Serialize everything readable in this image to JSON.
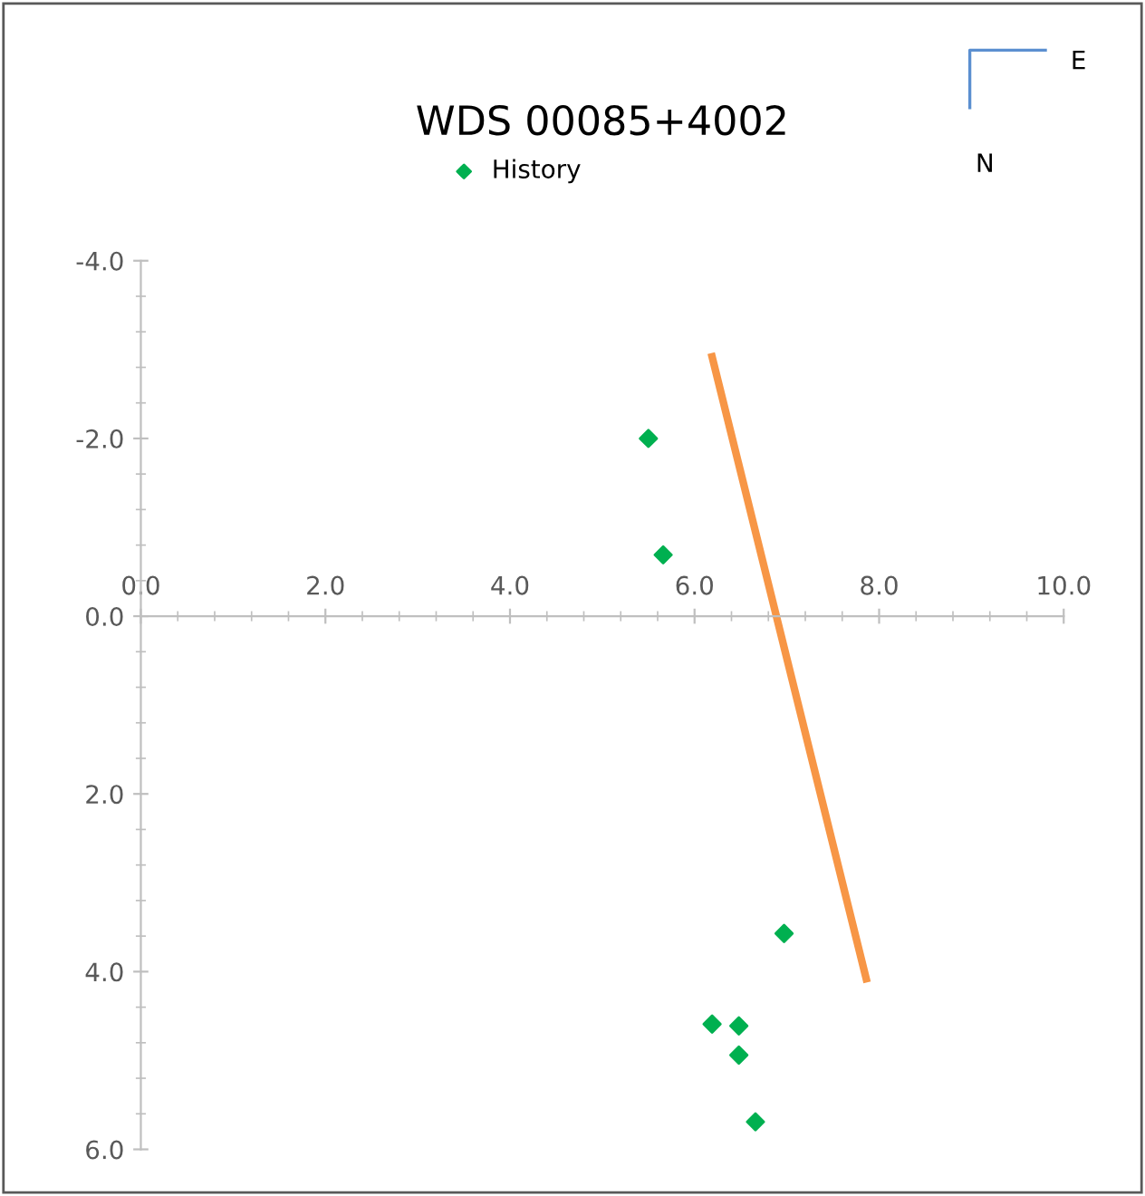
{
  "chart_data": {
    "type": "scatter",
    "title": "WDS 00085+4002",
    "annotations": [
      "E",
      "N"
    ],
    "series": [
      {
        "name": "History",
        "color": "#00b050",
        "marker": "diamond",
        "x": [
          5.5,
          5.66,
          6.97,
          6.19,
          6.48,
          6.48,
          6.66
        ],
        "values": [
          -2.0,
          -0.69,
          3.57,
          4.59,
          4.61,
          4.94,
          5.69
        ]
      },
      {
        "type": "line",
        "color": "#f79646",
        "marker": "none",
        "x": [
          6.19,
          7.86
        ],
        "values": [
          -2.92,
          4.08
        ]
      }
    ],
    "xlim": [
      0,
      10
    ],
    "ylim": [
      6,
      -4
    ],
    "xticks": [
      {
        "value": 0,
        "label": "0.0"
      },
      {
        "value": 2,
        "label": "2.0"
      },
      {
        "value": 4,
        "label": "4.0"
      },
      {
        "value": 6,
        "label": "6.0"
      },
      {
        "value": 8,
        "label": "8.0"
      },
      {
        "value": 10,
        "label": "10.0"
      }
    ],
    "yticks": [
      {
        "value": -4,
        "label": "-4.0"
      },
      {
        "value": -2,
        "label": "-2.0"
      },
      {
        "value": 0,
        "label": "0.0"
      },
      {
        "value": 2,
        "label": "2.0"
      },
      {
        "value": 4,
        "label": "4.0"
      },
      {
        "value": 6,
        "label": "6.0"
      }
    ],
    "grid": false,
    "legend": "top"
  }
}
